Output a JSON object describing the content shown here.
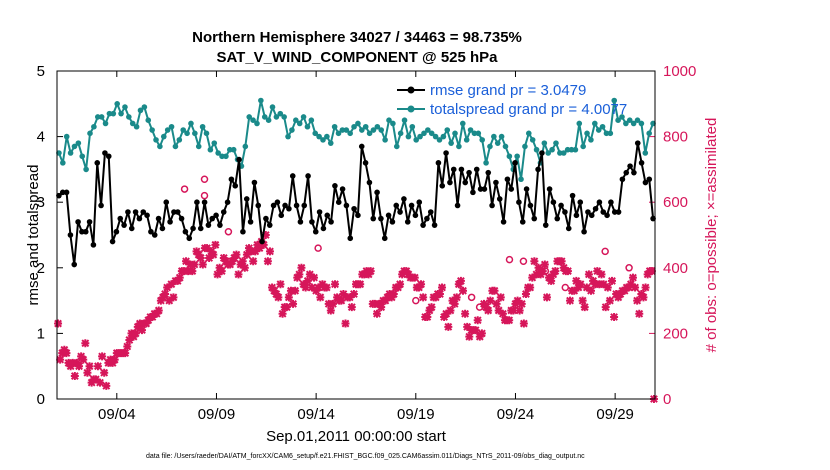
{
  "chart_data": {
    "type": "line",
    "title": "Northern Hemisphere 34027 / 34463 = 98.735%",
    "subtitle": "SAT_V_WIND_COMPONENT @ 525 hPa",
    "xlabel": "Sep.01,2011 00:00:00 start",
    "ylabel_left": "rmse and totalspread",
    "ylabel_right": "# of obs: o=possible; ×=assimilated",
    "footnote": "data file: /Users/raeder/DAI/ATM_forcXX/CAM6_setup/f.e21.FHIST_BGC.f09_025.CAM6assim.011/Diags_NTrS_2011-09/obs_diag_output.nc",
    "xlim": [
      0.5,
      30.5
    ],
    "ylim_left": [
      0,
      5
    ],
    "ylim_right": [
      0,
      1000
    ],
    "x_ticks": [
      3.5,
      8.5,
      13.5,
      18.5,
      23.5,
      28.5
    ],
    "x_tick_labels": [
      "09/04",
      "09/09",
      "09/14",
      "09/19",
      "09/24",
      "09/29"
    ],
    "y_ticks_left": [
      "0",
      "1",
      "2",
      "3",
      "4",
      "5"
    ],
    "y_ticks_right": [
      "0",
      "200",
      "400",
      "600",
      "800",
      "1000"
    ],
    "colors": {
      "rmse": "#000000",
      "spread": "#1a8a8a",
      "obs": "#d6165a",
      "legend_text": "#1a5fd9"
    },
    "series": [
      {
        "name": "rmse grand pr = 3.0479",
        "values": [
          3.1,
          3.15,
          3.15,
          2.5,
          2.05,
          2.7,
          2.55,
          2.55,
          2.7,
          2.35,
          3.6,
          2.95,
          3.75,
          3.7,
          2.4,
          2.55,
          2.75,
          2.65,
          2.85,
          2.6,
          2.85,
          2.75,
          2.85,
          2.8,
          2.55,
          2.5,
          2.75,
          2.6,
          3.0,
          2.7,
          2.85,
          2.85,
          2.75,
          2.55,
          2.45,
          2.6,
          3.0,
          2.6,
          3.0,
          2.65,
          2.75,
          2.8,
          2.65,
          2.85,
          3.0,
          3.35,
          3.25,
          3.65,
          2.55,
          3.05,
          2.7,
          3.3,
          2.95,
          2.4,
          2.75,
          2.65,
          2.95,
          3.0,
          2.8,
          2.95,
          2.9,
          3.4,
          2.95,
          2.7,
          2.95,
          3.4,
          2.7,
          2.55,
          2.85,
          2.6,
          2.8,
          2.7,
          3.25,
          3.0,
          3.2,
          2.95,
          2.45,
          2.9,
          2.8,
          3.85,
          3.6,
          3.3,
          2.75,
          3.15,
          2.75,
          2.45,
          2.8,
          2.7,
          2.95,
          2.85,
          3.05,
          2.7,
          2.95,
          2.8,
          3.0,
          2.65,
          2.75,
          2.85,
          2.65,
          3.6,
          3.25,
          3.75,
          3.3,
          3.5,
          2.95,
          3.5,
          3.3,
          3.45,
          3.15,
          3.5,
          3.2,
          3.2,
          3.45,
          2.95,
          3.3,
          3.05,
          2.7,
          3.35,
          3.2,
          3.6,
          3.0,
          2.7,
          3.2,
          2.95,
          2.75,
          3.5,
          3.75,
          2.65,
          3.2,
          3.0,
          2.75,
          2.95,
          2.85,
          2.6,
          3.1,
          2.8,
          3.0,
          2.55,
          2.85,
          2.8,
          2.9,
          3.0,
          2.85,
          2.8,
          3.0,
          2.85,
          2.85,
          3.35,
          3.45,
          3.55,
          3.45,
          3.9,
          3.6,
          3.3,
          3.35,
          2.75
        ]
      },
      {
        "name": "totalspread grand pr = 4.0077",
        "values": [
          3.75,
          3.6,
          4.0,
          3.75,
          3.85,
          3.9,
          3.7,
          3.5,
          4.05,
          4.15,
          4.3,
          4.3,
          4.2,
          4.35,
          4.35,
          4.5,
          4.35,
          4.45,
          4.3,
          4.2,
          4.15,
          4.4,
          4.45,
          4.25,
          4.1,
          3.95,
          3.85,
          4.0,
          4.1,
          4.15,
          3.85,
          3.95,
          4.1,
          4.05,
          4.2,
          4.05,
          3.85,
          4.15,
          4.05,
          3.8,
          3.9,
          3.75,
          3.7,
          3.7,
          3.8,
          3.8,
          3.65,
          3.55,
          3.85,
          4.3,
          4.25,
          4.2,
          4.55,
          4.3,
          4.25,
          4.45,
          4.3,
          4.35,
          4.3,
          4.0,
          4.1,
          4.25,
          4.2,
          4.3,
          4.15,
          4.25,
          4.05,
          4.0,
          3.95,
          4.0,
          3.9,
          4.15,
          4.05,
          4.1,
          4.1,
          4.05,
          4.15,
          4.2,
          4.1,
          4.15,
          4.05,
          4.1,
          4.15,
          4.1,
          3.95,
          4.25,
          4.2,
          3.85,
          4.05,
          4.25,
          4.0,
          4.15,
          3.95,
          4.0,
          4.05,
          4.1,
          4.05,
          4.0,
          3.95,
          4.0,
          4.1,
          3.9,
          4.05,
          3.85,
          4.2,
          3.95,
          4.1,
          4.05,
          4.05,
          3.95,
          3.6,
          3.85,
          4.0,
          3.9,
          4.0,
          3.85,
          3.7,
          3.5,
          3.7,
          3.35,
          3.85,
          4.05,
          3.95,
          3.8,
          3.6,
          3.9,
          3.75,
          3.8,
          3.9,
          3.75,
          3.75,
          3.8,
          3.8,
          3.8,
          4.2,
          3.85,
          4.05,
          3.95,
          4.2,
          4.1,
          4.15,
          4.05,
          4.05,
          4.55,
          4.25,
          4.3,
          4.2,
          4.25,
          4.2,
          4.25,
          4.2,
          3.75,
          4.05,
          4.2
        ]
      }
    ],
    "obs_assimilated": [
      230,
      120,
      140,
      150,
      140,
      110,
      100,
      110,
      70,
      110,
      100,
      130,
      120,
      170,
      80,
      100,
      50,
      60,
      60,
      100,
      50,
      130,
      80,
      40,
      110,
      120,
      110,
      120,
      140,
      140,
      140,
      140,
      140,
      160,
      180,
      200,
      190,
      200,
      220,
      230,
      210,
      230,
      230,
      240,
      250,
      250,
      260,
      260,
      270,
      300,
      310,
      320,
      340,
      300,
      350,
      310,
      360,
      360,
      370,
      390,
      390,
      420,
      390,
      410,
      390,
      410,
      450,
      440,
      430,
      410,
      460,
      460,
      430,
      450,
      440,
      470,
      380,
      400,
      390,
      430,
      420,
      410,
      410,
      420,
      430,
      440,
      380,
      410,
      420,
      400,
      440,
      460,
      450,
      420,
      450,
      470,
      460,
      480,
      470,
      500,
      420,
      450,
      340,
      330,
      320,
      310,
      350,
      260,
      280,
      280,
      310,
      330,
      290,
      330,
      370,
      380,
      400,
      350,
      340,
      360,
      380,
      340,
      370,
      330,
      340,
      310,
      350,
      340,
      340,
      290,
      270,
      290,
      350,
      310,
      300,
      300,
      320,
      230,
      310,
      310,
      280,
      320,
      350,
      350,
      350,
      380,
      380,
      390,
      380,
      390,
      290,
      290,
      260,
      290,
      280,
      300,
      300,
      310,
      320,
      310,
      320,
      340,
      340,
      350,
      380,
      390,
      390,
      380,
      370,
      370,
      370,
      340,
      340,
      350,
      310,
      250,
      250,
      270,
      280,
      310,
      310,
      320,
      320,
      340,
      250,
      260,
      220,
      270,
      300,
      290,
      310,
      350,
      360,
      330,
      260,
      220,
      190,
      210,
      210,
      210,
      240,
      190,
      200,
      290,
      280,
      270,
      300,
      330,
      330,
      290,
      270,
      310,
      260,
      240,
      240,
      240,
      270,
      270,
      290,
      300,
      270,
      290,
      230,
      320,
      340,
      340,
      370,
      420,
      380,
      400,
      380,
      390,
      410,
      310,
      370,
      360,
      380,
      390,
      420,
      420,
      420,
      400,
      390,
      390,
      300,
      330,
      330,
      360,
      340,
      350,
      300,
      280,
      340,
      380,
      330,
      360,
      350,
      390,
      350,
      380,
      350,
      280,
      340,
      300,
      360,
      250,
      320,
      310,
      320,
      330,
      330,
      340,
      340,
      350,
      370,
      340,
      300,
      260,
      320,
      310,
      340,
      380,
      390,
      390,
      0
    ],
    "obs_possible_extra": [
      [
        6.9,
        640
      ],
      [
        7.9,
        670
      ],
      [
        7.9,
        620
      ],
      [
        9.1,
        510
      ],
      [
        13.6,
        460
      ],
      [
        18.5,
        300
      ],
      [
        21.3,
        310
      ],
      [
        21.7,
        280
      ],
      [
        23.2,
        425
      ],
      [
        23.9,
        420
      ],
      [
        25.0,
        390
      ],
      [
        26.0,
        340
      ],
      [
        28.0,
        450
      ],
      [
        29.2,
        400
      ]
    ]
  },
  "legend": {
    "rmse_label": "rmse grand pr = 3.0479",
    "spread_label": "totalspread grand pr = 4.0077"
  }
}
